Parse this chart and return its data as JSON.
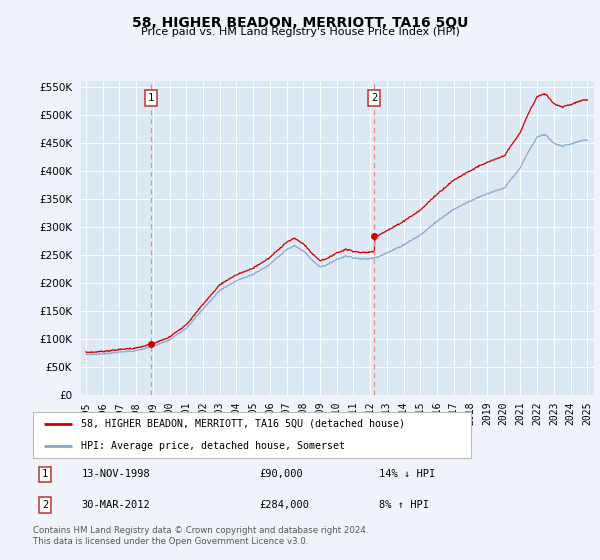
{
  "title": "58, HIGHER BEADON, MERRIOTT, TA16 5QU",
  "subtitle": "Price paid vs. HM Land Registry's House Price Index (HPI)",
  "fig_bg_color": "#f0f4fa",
  "plot_bg_color": "#dde8f5",
  "legend_entry1": "58, HIGHER BEADON, MERRIOTT, TA16 5QU (detached house)",
  "legend_entry2": "HPI: Average price, detached house, Somerset",
  "annotation1_date": "13-NOV-1998",
  "annotation1_price": "£90,000",
  "annotation1_hpi": "14% ↓ HPI",
  "annotation2_date": "30-MAR-2012",
  "annotation2_price": "£284,000",
  "annotation2_hpi": "8% ↑ HPI",
  "footer": "Contains HM Land Registry data © Crown copyright and database right 2024.\nThis data is licensed under the Open Government Licence v3.0.",
  "sale1_year": 1998.87,
  "sale1_value": 90000,
  "sale2_year": 2012.25,
  "sale2_value": 284000,
  "ylim": [
    0,
    560000
  ],
  "yticks": [
    0,
    50000,
    100000,
    150000,
    200000,
    250000,
    300000,
    350000,
    400000,
    450000,
    500000,
    550000
  ],
  "red_color": "#cc0000",
  "blue_color": "#88aacc",
  "vline_color": "#ee8888"
}
